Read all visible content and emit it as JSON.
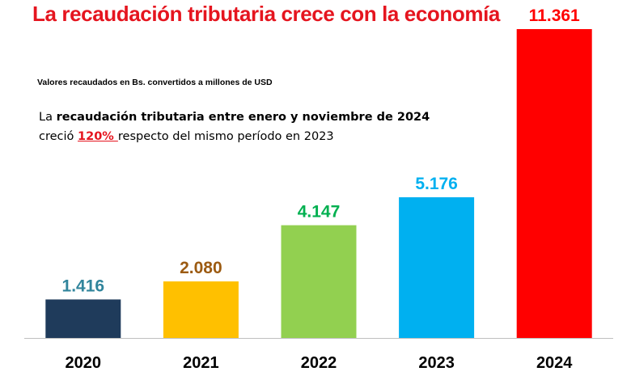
{
  "colors": {
    "title": "#e5151f",
    "axis": "#bfbfbf",
    "highlight": "#e5151f"
  },
  "note": {
    "line1_prefix": "La ",
    "line1_bold": "recaudación tributaria entre enero y noviembre de 2024",
    "line2_prefix": "creció ",
    "line2_highlight": "120% ",
    "line2_suffix": "respecto del mismo período en 2023"
  },
  "chart_data": {
    "type": "bar",
    "title": "La recaudación tributaria crece con la economía",
    "subtitle": "Valores recaudados en Bs. convertidos a millones de USD",
    "categories": [
      "2020",
      "2021",
      "2022",
      "2023",
      "2024"
    ],
    "values": [
      1416,
      2080,
      4147,
      5176,
      11361
    ],
    "data_labels": [
      "1.416",
      "2.080",
      "4.147",
      "5.176",
      "11.361"
    ],
    "bar_colors": [
      "#1f3b5b",
      "#ffc000",
      "#92d050",
      "#00b0f0",
      "#ff0000"
    ],
    "label_colors": [
      "#31859c",
      "#9c5b12",
      "#00b050",
      "#00b0f0",
      "#ff0000"
    ],
    "ylim": [
      0,
      11361
    ],
    "grid": false,
    "legend": "none"
  }
}
